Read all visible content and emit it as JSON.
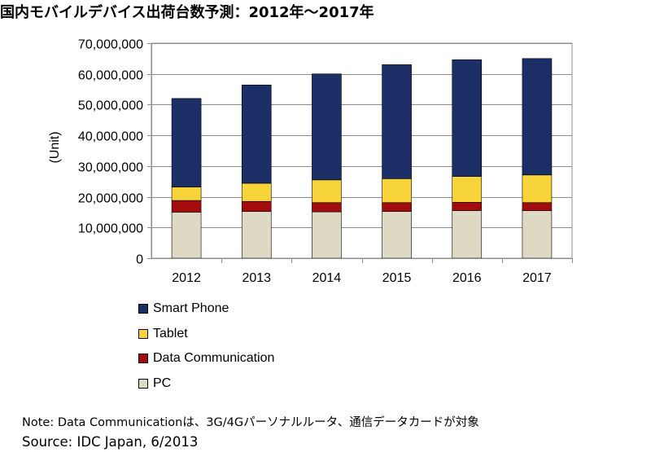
{
  "title": "国内モバイルデバイス出荷台数予測：2012年～2017年",
  "note": "Note: Data Communicationは、3G/4Gパーソナルルータ、通信データカードが対象",
  "source": "Source: IDC Japan, 6/2013",
  "chart_data": {
    "type": "bar",
    "stacked": true,
    "title": "国内モバイルデバイス出荷台数予測：2012年～2017年",
    "xlabel": "",
    "ylabel": "(Unit)",
    "ylim": [
      0,
      70000000
    ],
    "yticks": [
      0,
      10000000,
      20000000,
      30000000,
      40000000,
      50000000,
      60000000,
      70000000
    ],
    "ytick_labels": [
      "0",
      "10,000,000",
      "20,000,000",
      "30,000,000",
      "40,000,000",
      "50,000,000",
      "60,000,000",
      "70,000,000"
    ],
    "grid": true,
    "legend_position": "bottom-left",
    "categories": [
      "2012",
      "2013",
      "2014",
      "2015",
      "2016",
      "2017"
    ],
    "series": [
      {
        "name": "PC",
        "color": "#ddd9c3",
        "values": [
          15000000,
          15200000,
          15100000,
          15200000,
          15500000,
          15500000
        ]
      },
      {
        "name": "Data Communication",
        "color": "#a30c0c",
        "values": [
          3800000,
          3300000,
          3000000,
          2900000,
          2700000,
          2600000
        ]
      },
      {
        "name": "Tablet",
        "color": "#f7d43a",
        "values": [
          4400000,
          5900000,
          7400000,
          7800000,
          8400000,
          9000000
        ]
      },
      {
        "name": "Smart Phone",
        "color": "#1b2f66",
        "values": [
          28800000,
          32000000,
          34500000,
          37100000,
          38000000,
          37900000
        ]
      }
    ]
  }
}
